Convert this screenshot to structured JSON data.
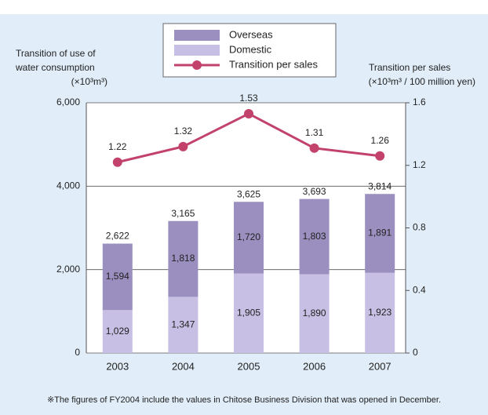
{
  "chart_data": {
    "type": "bar",
    "stacked": true,
    "y_axis_label": [
      "Transition of use of",
      "water consumption",
      "(×10³m³)"
    ],
    "y2_axis_label": [
      "Transition per sales",
      "(×10³m³ / 100 million yen)"
    ],
    "categories": [
      "2003",
      "2004",
      "2005",
      "2006",
      "2007"
    ],
    "series": [
      {
        "name": "Overseas",
        "color": "#9a8fbf",
        "values": [
          1594,
          1818,
          1720,
          1803,
          1891
        ],
        "value_labels": [
          "1,594",
          "1,818",
          "1,720",
          "1,803",
          "1,891"
        ]
      },
      {
        "name": "Domestic",
        "color": "#c8bfe4",
        "values": [
          1029,
          1347,
          1905,
          1890,
          1923
        ],
        "value_labels": [
          "1,029",
          "1,347",
          "1,905",
          "1,890",
          "1,923"
        ]
      },
      {
        "name": "Transition per sales",
        "type": "line",
        "axis": "y2",
        "color": "#c2426c",
        "values": [
          1.22,
          1.32,
          1.53,
          1.31,
          1.26
        ]
      }
    ],
    "totals": {
      "values": [
        2622,
        3165,
        3625,
        3693,
        3814
      ],
      "value_labels": [
        "2,622",
        "3,165",
        "3,625",
        "3,693",
        "3,814"
      ]
    },
    "ylim": [
      0,
      6000
    ],
    "yticks": [
      0,
      {
        "value": 2000,
        "label": "2,000"
      },
      {
        "value": 4000,
        "label": "4,000"
      },
      {
        "value": 6000,
        "label": "6,000"
      }
    ],
    "y2lim": [
      0,
      1.6
    ],
    "y2ticks": [
      0,
      0.4,
      0.8,
      1.2,
      1.6
    ],
    "grid": true,
    "legend": "top",
    "footnote": "※The figures of FY2004 include the values in Chitose Business Division that was opened in December."
  }
}
